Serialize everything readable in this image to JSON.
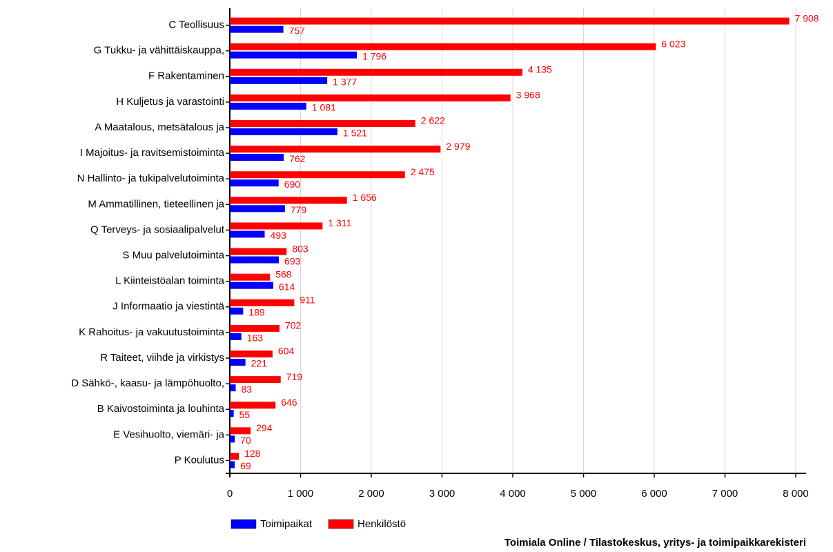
{
  "chart_data": {
    "type": "bar",
    "orientation": "horizontal",
    "categories": [
      "C Teollisuus",
      "G Tukku- ja vähittäiskauppa,",
      "F Rakentaminen",
      "H Kuljetus ja varastointi",
      "A Maatalous, metsätalous ja",
      "I Majoitus- ja ravitsemistoiminta",
      "N Hallinto- ja tukipalvelutoiminta",
      "M Ammatillinen, tieteellinen ja",
      "Q Terveys- ja sosiaalipalvelut",
      "S Muu palvelutoiminta",
      "L Kiinteistöalan toiminta",
      "J Informaatio ja viestintä",
      "K Rahoitus- ja vakuutustoiminta",
      "R Taiteet, viihde ja virkistys",
      "D Sähkö-, kaasu- ja lämpöhuolto,",
      "B Kaivostoiminta ja louhinta",
      "E Vesihuolto, viemäri- ja",
      "P Koulutus"
    ],
    "series": [
      {
        "name": "Toimipaikat",
        "color": "#0000ff",
        "values": [
          757,
          1796,
          1377,
          1081,
          1521,
          762,
          690,
          779,
          493,
          693,
          614,
          189,
          163,
          221,
          83,
          55,
          70,
          69
        ],
        "value_labels": [
          "757",
          "1 796",
          "1 377",
          "1 081",
          "1 521",
          "762",
          "690",
          "779",
          "493",
          "693",
          "614",
          "189",
          "163",
          "221",
          "83",
          "55",
          "70",
          "69"
        ]
      },
      {
        "name": "Henkilöstö",
        "color": "#ff0000",
        "values": [
          7908,
          6023,
          4135,
          3968,
          2622,
          2979,
          2475,
          1656,
          1311,
          803,
          568,
          911,
          702,
          604,
          719,
          646,
          294,
          128
        ],
        "value_labels": [
          "7 908",
          "6 023",
          "4 135",
          "3 968",
          "2 622",
          "2 979",
          "2 475",
          "1 656",
          "1 311",
          "803",
          "568",
          "911",
          "702",
          "604",
          "719",
          "646",
          "294",
          "128"
        ]
      }
    ],
    "xlim": [
      0,
      8000
    ],
    "xticks": [
      0,
      {
        "value": 1000,
        "label": "1 000"
      },
      {
        "value": 2000,
        "label": "2 000"
      },
      {
        "value": 3000,
        "label": "3 000"
      },
      {
        "value": 4000,
        "label": "4 000"
      },
      {
        "value": 5000,
        "label": "5 000"
      },
      {
        "value": 6000,
        "label": "6 000"
      },
      {
        "value": 7000,
        "label": "7 000"
      },
      {
        "value": 8000,
        "label": "8 000"
      }
    ],
    "grid": true,
    "source": "Toimiala Online / Tilastokeskus, yritys- ja toimipaikkarekisteri"
  }
}
